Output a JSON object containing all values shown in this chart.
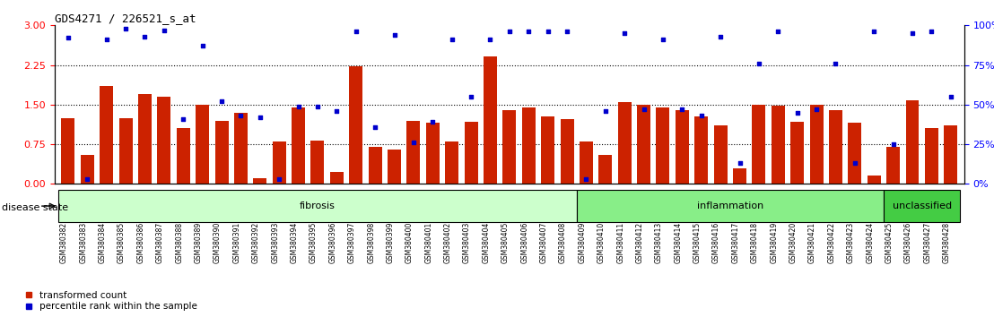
{
  "title": "GDS4271 / 226521_s_at",
  "samples": [
    "GSM380382",
    "GSM380383",
    "GSM380384",
    "GSM380385",
    "GSM380386",
    "GSM380387",
    "GSM380388",
    "GSM380389",
    "GSM380390",
    "GSM380391",
    "GSM380392",
    "GSM380393",
    "GSM380394",
    "GSM380395",
    "GSM380396",
    "GSM380397",
    "GSM380398",
    "GSM380399",
    "GSM380400",
    "GSM380401",
    "GSM380402",
    "GSM380403",
    "GSM380404",
    "GSM380405",
    "GSM380406",
    "GSM380407",
    "GSM380408",
    "GSM380409",
    "GSM380410",
    "GSM380411",
    "GSM380412",
    "GSM380413",
    "GSM380414",
    "GSM380415",
    "GSM380416",
    "GSM380417",
    "GSM380418",
    "GSM380419",
    "GSM380420",
    "GSM380421",
    "GSM380422",
    "GSM380423",
    "GSM380424",
    "GSM380425",
    "GSM380426",
    "GSM380427",
    "GSM380428"
  ],
  "bar_values": [
    1.25,
    0.55,
    1.85,
    1.25,
    1.7,
    1.65,
    1.05,
    1.5,
    1.2,
    1.35,
    0.1,
    0.8,
    1.45,
    0.82,
    0.22,
    2.22,
    0.7,
    0.65,
    1.2,
    1.15,
    0.8,
    1.18,
    2.42,
    1.4,
    1.45,
    1.28,
    1.22,
    0.8,
    0.55,
    1.55,
    1.5,
    1.45,
    1.4,
    1.28,
    1.1,
    0.3,
    1.5,
    1.48,
    1.18,
    1.5,
    1.4,
    1.15,
    0.15,
    0.7,
    1.58,
    1.05,
    1.1
  ],
  "scatter_values_pct": [
    92,
    3,
    91,
    98,
    93,
    97,
    41,
    87,
    52,
    43,
    42,
    3,
    49,
    49,
    46,
    96,
    36,
    94,
    26,
    39,
    91,
    55,
    91,
    96,
    96,
    96,
    96,
    3,
    46,
    95,
    47,
    91,
    47,
    43,
    93,
    13,
    76,
    96,
    45,
    47,
    76,
    13,
    96,
    25,
    95,
    96,
    55
  ],
  "groups": [
    {
      "label": "fibrosis",
      "start": 0,
      "end": 27,
      "color": "#ccffcc"
    },
    {
      "label": "inflammation",
      "start": 27,
      "end": 43,
      "color": "#88ee88"
    },
    {
      "label": "unclassified",
      "start": 43,
      "end": 47,
      "color": "#44cc44"
    }
  ],
  "bar_color": "#cc2200",
  "scatter_color": "#0000cc",
  "ylim_left": [
    0,
    3.0
  ],
  "ylim_right": [
    0,
    100
  ],
  "yticks_left": [
    0,
    0.75,
    1.5,
    2.25,
    3.0
  ],
  "yticks_right": [
    0,
    25,
    50,
    75,
    100
  ],
  "hlines": [
    0.75,
    1.5,
    2.25
  ],
  "bar_width": 0.7,
  "disease_state_label": "disease state"
}
